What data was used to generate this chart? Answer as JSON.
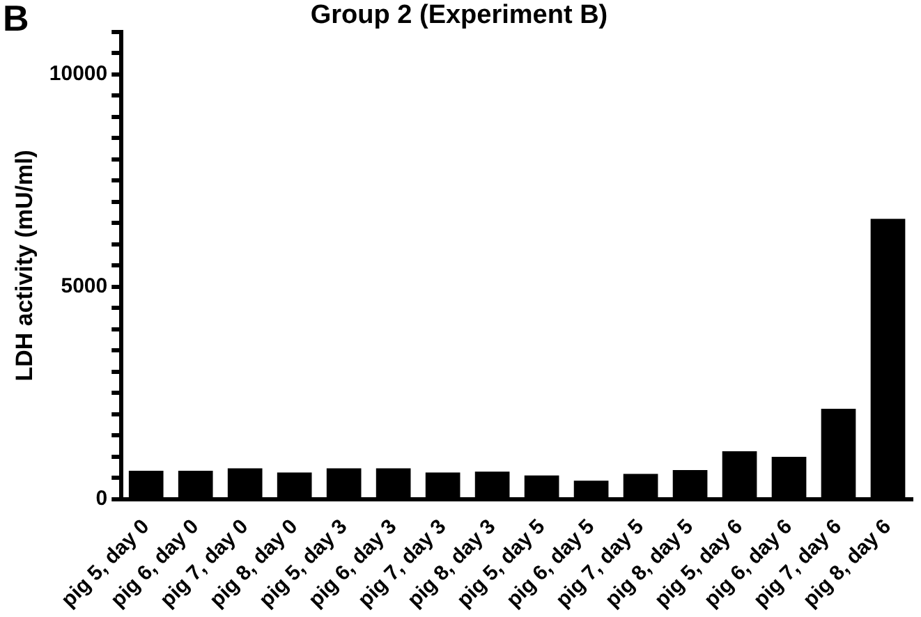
{
  "chart_data": {
    "type": "bar",
    "title": "Group 2 (Experiment B)",
    "ylabel": "LDH activity (mU/ml)",
    "annotations": [
      "B"
    ],
    "categories": [
      "pig 5, day 0",
      "pig 6, day 0",
      "pig 7, day 0",
      "pig 8, day 0",
      "pig 5, day 3",
      "pig 6, day 3",
      "pig 7, day 3",
      "pig 8, day 3",
      "pig 5, day 5",
      "pig 6, day 5",
      "pig 7, day 5",
      "pig 8, day 5",
      "pig 5, day 6",
      "pig 6, day 6",
      "pig 7, day 6",
      "pig 8, day 6"
    ],
    "values": [
      670,
      670,
      730,
      630,
      730,
      730,
      630,
      650,
      560,
      440,
      600,
      690,
      1130,
      1000,
      2130,
      6600
    ],
    "color": "#000000",
    "ylim": [
      0,
      11000
    ],
    "yticks": [
      0,
      {
        "value": 500,
        "label": null
      },
      {
        "value": 1000,
        "label": null
      },
      {
        "value": 1500,
        "label": null
      },
      {
        "value": 2000,
        "label": null
      },
      {
        "value": 2500,
        "label": null
      },
      {
        "value": 3000,
        "label": null
      },
      {
        "value": 3500,
        "label": null
      },
      {
        "value": 4000,
        "label": null
      },
      {
        "value": 4500,
        "label": null
      },
      5000,
      {
        "value": 5500,
        "label": null
      },
      {
        "value": 6000,
        "label": null
      },
      {
        "value": 6500,
        "label": null
      },
      {
        "value": 7000,
        "label": null
      },
      {
        "value": 7500,
        "label": null
      },
      {
        "value": 8000,
        "label": null
      },
      {
        "value": 8500,
        "label": null
      },
      {
        "value": 9000,
        "label": null
      },
      {
        "value": 9500,
        "label": null
      },
      10000,
      {
        "value": 10500,
        "label": null
      },
      {
        "value": 11000,
        "label": null
      }
    ],
    "grid": false,
    "legend": false
  }
}
